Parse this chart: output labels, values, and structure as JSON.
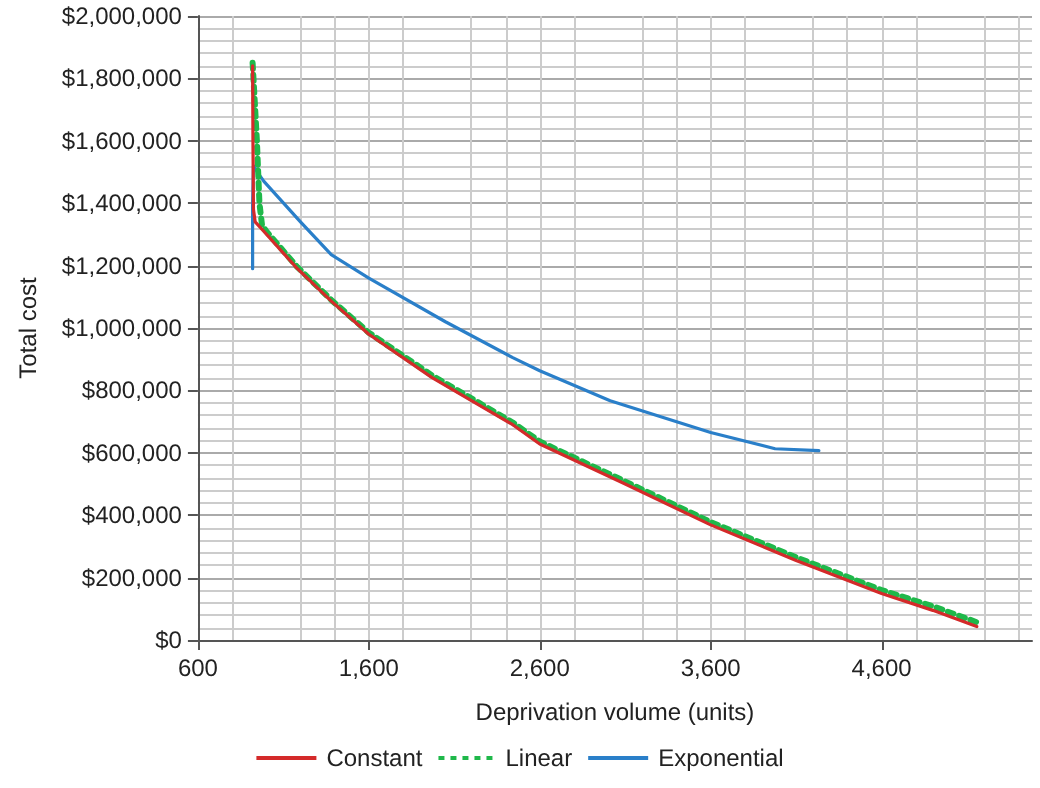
{
  "chart_data": {
    "type": "line",
    "xlabel": "Deprivation volume (units)",
    "ylabel": "Total cost",
    "xlim": [
      600,
      5480
    ],
    "xticks": [
      600,
      {
        "value": 1600,
        "label": "1,600"
      },
      {
        "value": 2600,
        "label": "2,600"
      },
      {
        "value": 3600,
        "label": "3,600"
      },
      {
        "value": 4600,
        "label": "4,600"
      }
    ],
    "ylim": [
      0,
      2000000
    ],
    "yticks": [
      {
        "value": 0,
        "label": "$0"
      },
      {
        "value": 200000,
        "label": "$200,000"
      },
      {
        "value": 400000,
        "label": "$400,000"
      },
      {
        "value": 600000,
        "label": "$600,000"
      },
      {
        "value": 800000,
        "label": "$800,000"
      },
      {
        "value": 1000000,
        "label": "$1,000,000"
      },
      {
        "value": 1200000,
        "label": "$1,200,000"
      },
      {
        "value": 1400000,
        "label": "$1,400,000"
      },
      {
        "value": 1600000,
        "label": "$1,600,000"
      },
      {
        "value": 1800000,
        "label": "$1,800,000"
      },
      {
        "value": 2000000,
        "label": "$2,000,000"
      }
    ],
    "grid": true,
    "legend": "bottom",
    "marker": "none",
    "series": [
      {
        "name": "Constant",
        "color": "#d42a2a",
        "line_style": "solid",
        "x": [
          920,
          922,
          925,
          935,
          985,
          1182,
          1380,
          1600,
          1970,
          2442,
          2600,
          3100,
          3600,
          4100,
          4600,
          4900,
          5157
        ],
        "values": [
          1840000,
          1600000,
          1380000,
          1340000,
          1310000,
          1190000,
          1086000,
          980000,
          841000,
          690000,
          628000,
          500000,
          369000,
          255000,
          149000,
          95000,
          43000
        ]
      },
      {
        "name": "Linear",
        "color": "#1fb84a",
        "line_style": "dotted",
        "x": [
          920,
          930,
          945,
          960,
          975,
          1000,
          1182,
          1380,
          1600,
          1970,
          2442,
          2600,
          3100,
          3600,
          4100,
          4600,
          4900,
          5157
        ],
        "values": [
          1850000,
          1750000,
          1600000,
          1400000,
          1330000,
          1310000,
          1195000,
          1090000,
          985000,
          848000,
          697000,
          636000,
          508000,
          378000,
          265000,
          160000,
          108000,
          57000
        ]
      },
      {
        "name": "Exponential",
        "color": "#2a7fc9",
        "line_style": "solid",
        "x": [
          920,
          920,
          925,
          960,
          986,
          1200,
          1380,
          1600,
          2048,
          2442,
          2600,
          3012,
          3600,
          3977,
          4233
        ],
        "values": [
          1190000,
          1400000,
          1520000,
          1490000,
          1470000,
          1340000,
          1235000,
          1160000,
          1020000,
          905000,
          863000,
          767000,
          665000,
          613000,
          607000
        ]
      }
    ]
  }
}
